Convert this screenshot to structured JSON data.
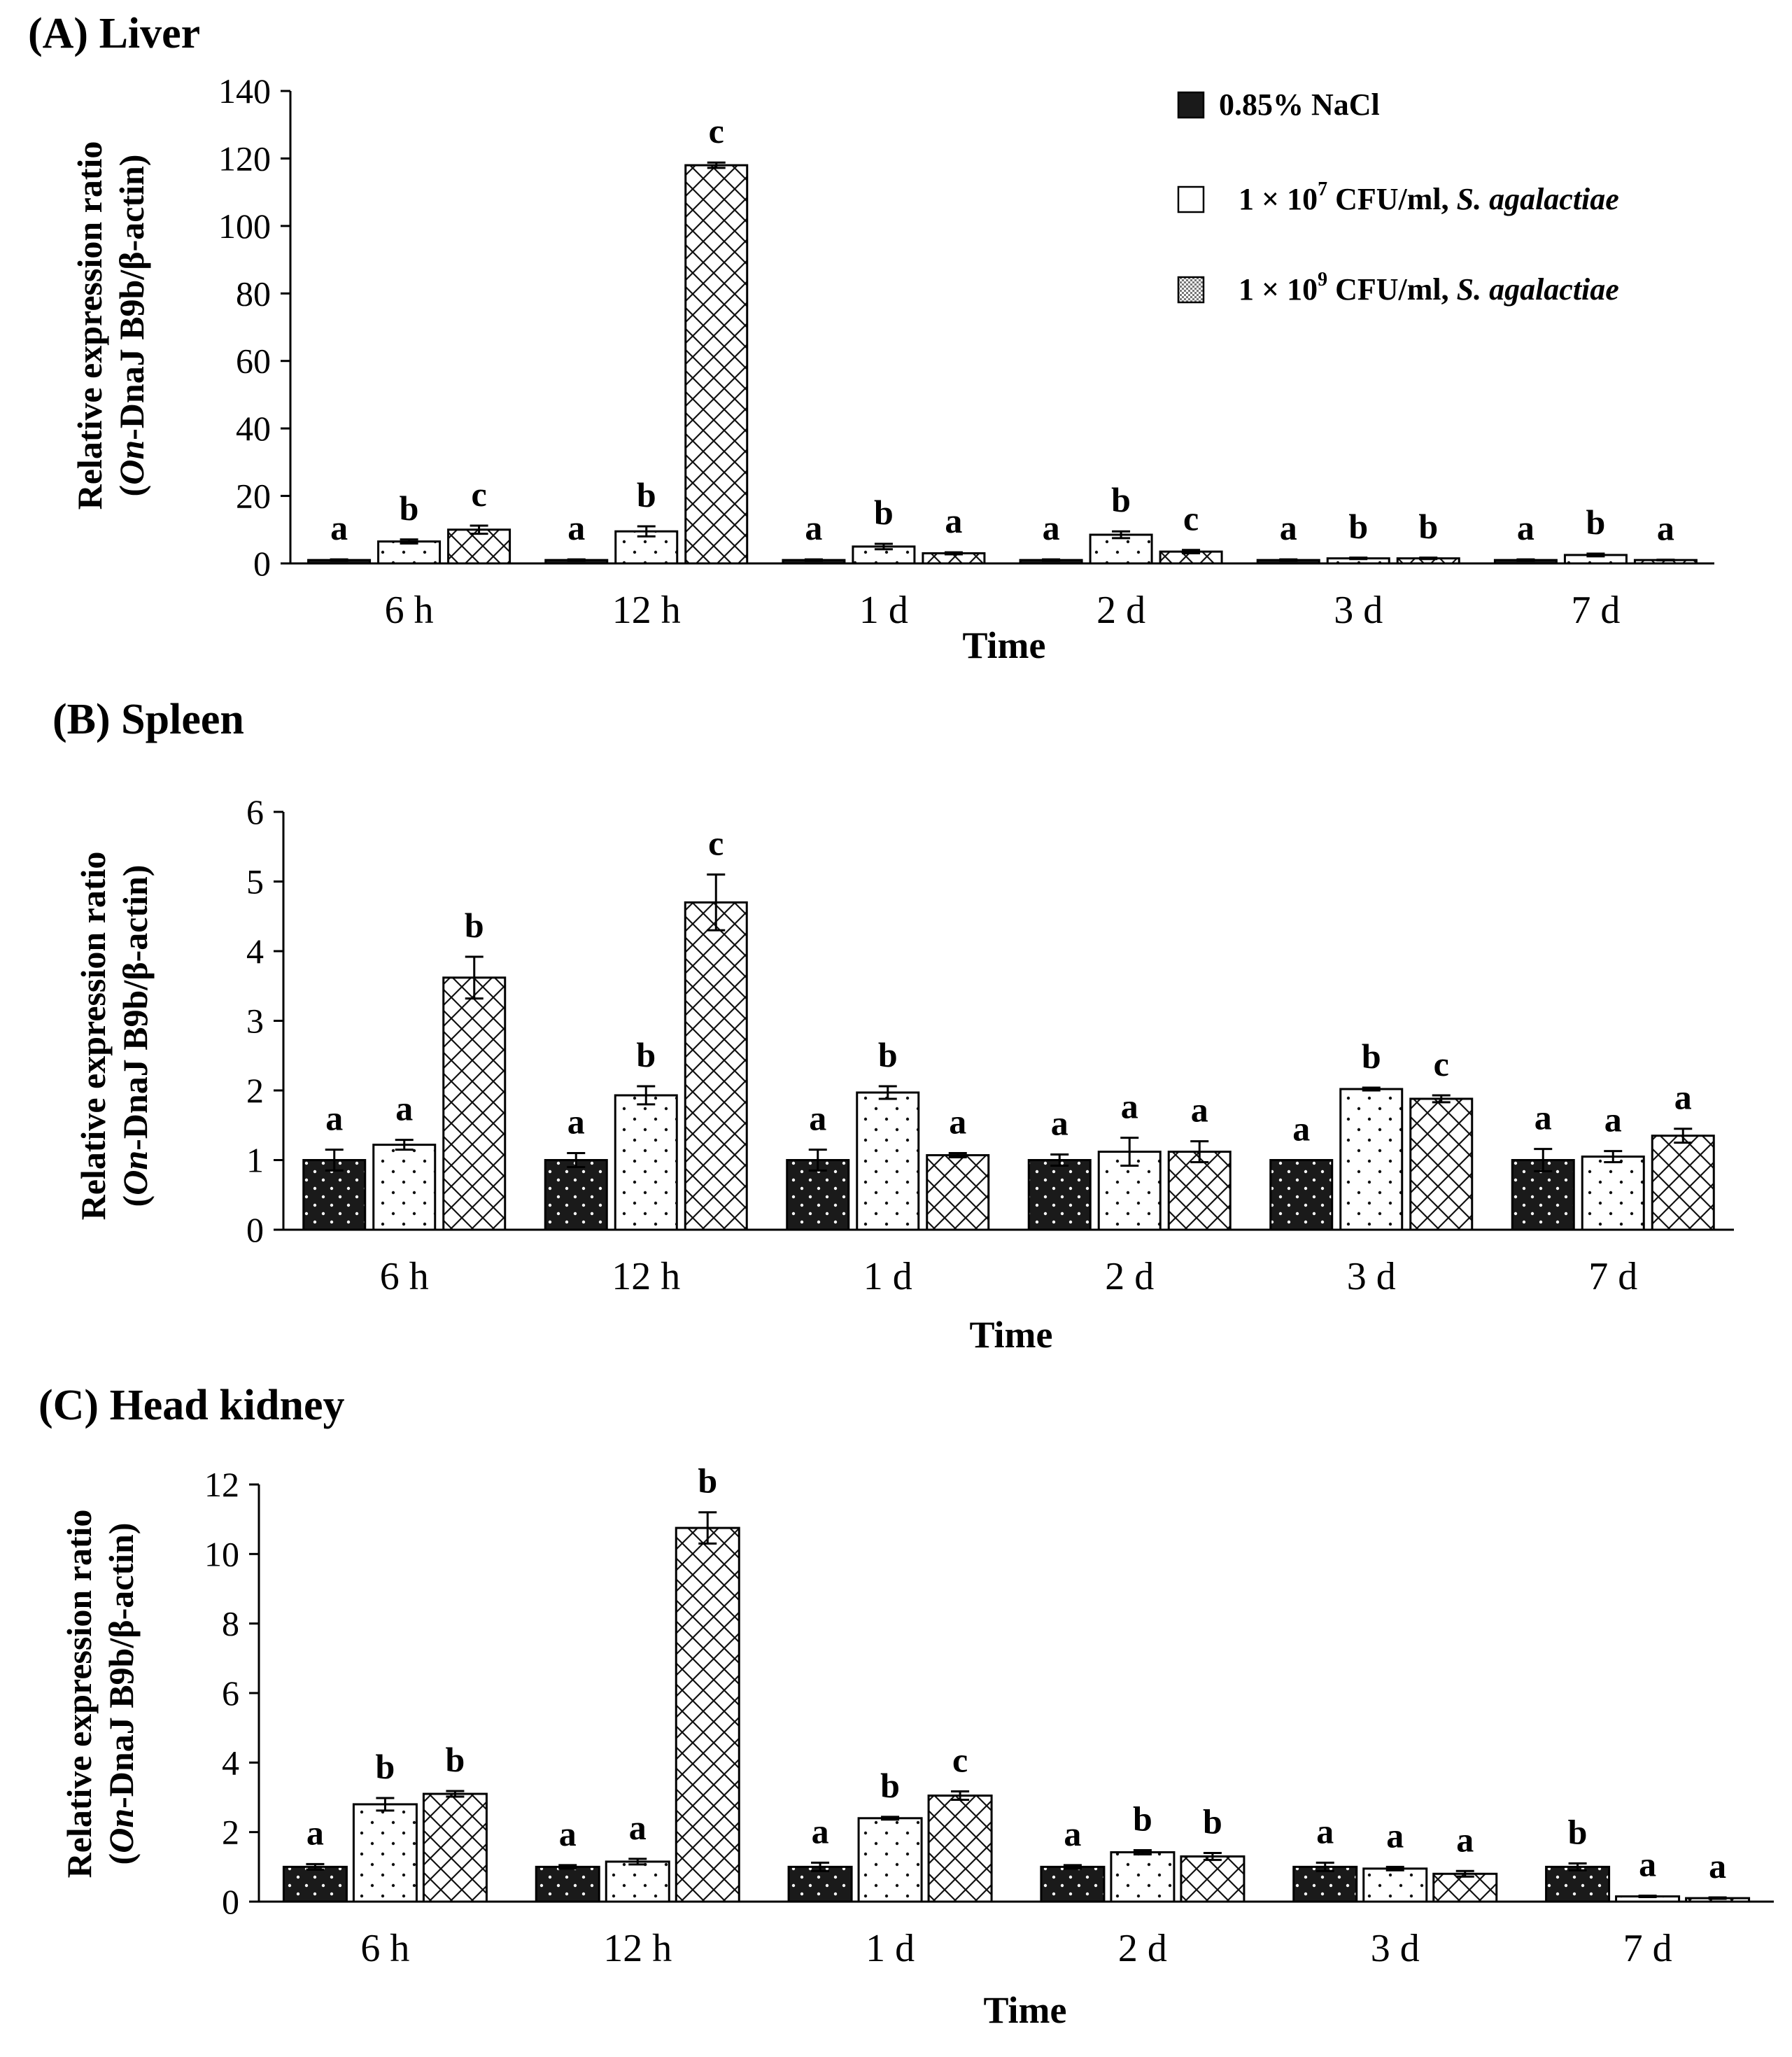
{
  "chart_data": [
    {
      "type": "bar",
      "title": "(A) Liver",
      "xlabel": "Time",
      "ylabel_lines": [
        "Relative expression ratio",
        "(On-DnaJ B9b/β-actin)"
      ],
      "ylabel_italic_prefix": "On",
      "ylim": [
        0,
        140
      ],
      "yticks": [
        0,
        20,
        40,
        60,
        80,
        100,
        120,
        140
      ],
      "categories": [
        "6 h",
        "12 h",
        "1 d",
        "2 d",
        "3 d",
        "7 d"
      ],
      "series": [
        {
          "name": "0.85% NaCl",
          "values": [
            1.0,
            1.0,
            1.0,
            1.0,
            1.0,
            1.0
          ],
          "errors": [
            0.2,
            0.2,
            0.2,
            0.2,
            0.2,
            0.2
          ],
          "letters": [
            "a",
            "a",
            "a",
            "a",
            "a",
            "a"
          ]
        },
        {
          "name": "1 × 10^7 CFU/ml, S. agalactiae",
          "values": [
            6.5,
            9.5,
            5.0,
            8.5,
            1.5,
            2.5
          ],
          "errors": [
            0.6,
            1.5,
            0.8,
            1.0,
            0.2,
            0.4
          ],
          "letters": [
            "b",
            "b",
            "b",
            "b",
            "b",
            "b"
          ]
        },
        {
          "name": "1 × 10^9 CFU/ml, S. agalactiae",
          "values": [
            10.0,
            118.0,
            3.0,
            3.5,
            1.5,
            1.0
          ],
          "errors": [
            1.2,
            0.8,
            0.3,
            0.5,
            0.2,
            0.1
          ],
          "letters": [
            "c",
            "c",
            "a",
            "c",
            "b",
            "a"
          ]
        }
      ]
    },
    {
      "type": "bar",
      "title": "(B) Spleen",
      "xlabel": "Time",
      "ylabel_lines": [
        "Relative expression ratio",
        "(On-DnaJ B9b/β-actin)"
      ],
      "ylabel_italic_prefix": "On",
      "ylim": [
        0,
        6
      ],
      "yticks": [
        0,
        1,
        2,
        3,
        4,
        5,
        6
      ],
      "categories": [
        "6 h",
        "12 h",
        "1 d",
        "2 d",
        "3 d",
        "7 d"
      ],
      "series": [
        {
          "name": "0.85% NaCl",
          "values": [
            1.0,
            1.0,
            1.0,
            1.0,
            1.0,
            1.0
          ],
          "errors": [
            0.15,
            0.1,
            0.15,
            0.08,
            0.0,
            0.16
          ],
          "letters": [
            "a",
            "a",
            "a",
            "a",
            "a",
            "a"
          ]
        },
        {
          "name": "1 × 10^7 CFU/ml, S. agalactiae",
          "values": [
            1.22,
            1.93,
            1.97,
            1.12,
            2.02,
            1.05
          ],
          "errors": [
            0.07,
            0.13,
            0.09,
            0.2,
            0.02,
            0.08
          ],
          "letters": [
            "a",
            "b",
            "b",
            "a",
            "b",
            "a"
          ]
        },
        {
          "name": "1 × 10^9 CFU/ml, S. agalactiae",
          "values": [
            3.62,
            4.7,
            1.07,
            1.12,
            1.88,
            1.35
          ],
          "errors": [
            0.3,
            0.4,
            0.03,
            0.15,
            0.05,
            0.1
          ],
          "letters": [
            "b",
            "c",
            "a",
            "a",
            "c",
            "a"
          ]
        }
      ]
    },
    {
      "type": "bar",
      "title": "(C) Head kidney",
      "xlabel": "Time",
      "ylabel_lines": [
        "Relative expression ratio",
        "(On-DnaJ B9b/β-actin)"
      ],
      "ylabel_italic_prefix": "On",
      "ylim": [
        0,
        12
      ],
      "yticks": [
        0,
        2,
        4,
        6,
        8,
        10,
        12
      ],
      "categories": [
        "6 h",
        "12 h",
        "1 d",
        "2 d",
        "3 d",
        "7 d"
      ],
      "series": [
        {
          "name": "0.85% NaCl",
          "values": [
            1.0,
            1.0,
            1.0,
            1.0,
            1.0,
            1.0
          ],
          "errors": [
            0.08,
            0.05,
            0.12,
            0.05,
            0.12,
            0.1
          ],
          "letters": [
            "a",
            "a",
            "a",
            "a",
            "a",
            "b"
          ]
        },
        {
          "name": "1 × 10^7 CFU/ml, S. agalactiae",
          "values": [
            2.8,
            1.15,
            2.4,
            1.42,
            0.95,
            0.15
          ],
          "errors": [
            0.18,
            0.08,
            0.04,
            0.06,
            0.05,
            0.02
          ],
          "letters": [
            "b",
            "a",
            "b",
            "b",
            "a",
            "a"
          ]
        },
        {
          "name": "1 × 10^9 CFU/ml, S. agalactiae",
          "values": [
            3.1,
            10.75,
            3.05,
            1.3,
            0.8,
            0.1
          ],
          "errors": [
            0.08,
            0.45,
            0.12,
            0.1,
            0.08,
            0.02
          ],
          "letters": [
            "b",
            "b",
            "c",
            "b",
            "a",
            "a"
          ]
        }
      ]
    }
  ],
  "legend": {
    "items": [
      {
        "pre": "0.85% NaCl",
        "sup": "",
        "mid": "",
        "ital": ""
      },
      {
        "pre": "1 ×  10",
        "sup": "7",
        "mid": " CFU/ml, ",
        "ital": "S. agalactiae"
      },
      {
        "pre": "1 × 10",
        "sup": "9",
        "mid": " CFU/ml, ",
        "ital": "S. agalactiae"
      }
    ]
  }
}
